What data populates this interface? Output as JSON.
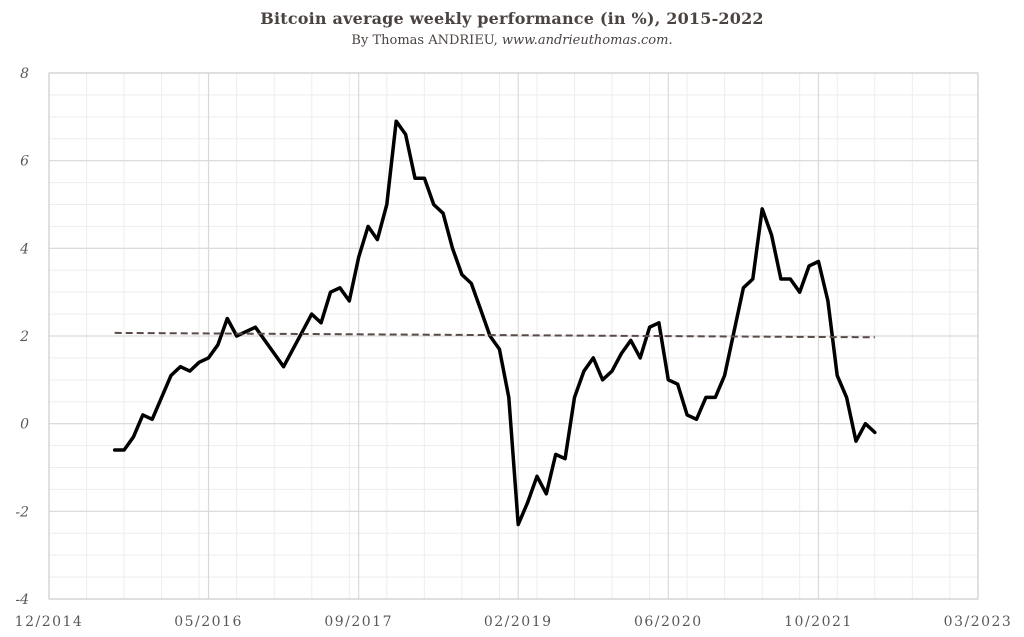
{
  "header": {
    "title": "Bitcoin average weekly performance (in %), 2015-2022",
    "byline": "By Thomas ANDRIEU,",
    "url": "www.andrieuthomas.com."
  },
  "chart_data": {
    "type": "line",
    "title": "Bitcoin average weekly performance (in %), 2015-2022",
    "subtitle": "By Thomas ANDRIEU, www.andrieuthomas.com.",
    "xlabel": "",
    "ylabel": "",
    "ylim": [
      -4,
      8
    ],
    "yticks": [
      "8",
      "6",
      "4",
      "2",
      "0",
      "-2",
      "-4"
    ],
    "xlim": [
      "2014-12",
      "2023-03"
    ],
    "xticks": [
      "12/2014",
      "05/2016",
      "09/2017",
      "02/2019",
      "06/2020",
      "10/2021",
      "03/2023"
    ],
    "grid": true,
    "legend": "none",
    "colors": {
      "line": "#000000",
      "average": "#5a4a48",
      "grid": "#d9d9d9"
    },
    "series": [
      {
        "style": "solid",
        "points": [
          [
            "2015-07",
            -0.6
          ],
          [
            "2015-08",
            -0.6
          ],
          [
            "2015-09",
            -0.3
          ],
          [
            "2015-10",
            0.2
          ],
          [
            "2015-11",
            0.1
          ],
          [
            "2015-12",
            0.6
          ],
          [
            "2016-01",
            1.1
          ],
          [
            "2016-02",
            1.3
          ],
          [
            "2016-03",
            1.2
          ],
          [
            "2016-04",
            1.4
          ],
          [
            "2016-05",
            1.5
          ],
          [
            "2016-06",
            1.8
          ],
          [
            "2016-07",
            2.4
          ],
          [
            "2016-08",
            2.0
          ],
          [
            "2016-09",
            2.1
          ],
          [
            "2016-10",
            2.2
          ],
          [
            "2016-11",
            1.9
          ],
          [
            "2016-12",
            1.6
          ],
          [
            "2017-01",
            1.3
          ],
          [
            "2017-02",
            1.7
          ],
          [
            "2017-03",
            2.1
          ],
          [
            "2017-04",
            2.5
          ],
          [
            "2017-05",
            2.3
          ],
          [
            "2017-06",
            3.0
          ],
          [
            "2017-07",
            3.1
          ],
          [
            "2017-08",
            2.8
          ],
          [
            "2017-09",
            3.8
          ],
          [
            "2017-10",
            4.5
          ],
          [
            "2017-11",
            4.2
          ],
          [
            "2017-12",
            5.0
          ],
          [
            "2018-01",
            6.9
          ],
          [
            "2018-02",
            6.6
          ],
          [
            "2018-03",
            5.6
          ],
          [
            "2018-04",
            5.6
          ],
          [
            "2018-05",
            5.0
          ],
          [
            "2018-06",
            4.8
          ],
          [
            "2018-07",
            4.0
          ],
          [
            "2018-08",
            3.4
          ],
          [
            "2018-09",
            3.2
          ],
          [
            "2018-10",
            2.6
          ],
          [
            "2018-11",
            2.0
          ],
          [
            "2018-12",
            1.7
          ],
          [
            "2019-01",
            0.6
          ],
          [
            "2019-02",
            -2.3
          ],
          [
            "2019-03",
            -1.8
          ],
          [
            "2019-04",
            -1.2
          ],
          [
            "2019-05",
            -1.6
          ],
          [
            "2019-06",
            -0.7
          ],
          [
            "2019-07",
            -0.8
          ],
          [
            "2019-08",
            0.6
          ],
          [
            "2019-09",
            1.2
          ],
          [
            "2019-10",
            1.5
          ],
          [
            "2019-11",
            1.0
          ],
          [
            "2019-12",
            1.2
          ],
          [
            "2020-01",
            1.6
          ],
          [
            "2020-02",
            1.9
          ],
          [
            "2020-03",
            1.5
          ],
          [
            "2020-04",
            2.2
          ],
          [
            "2020-05",
            2.3
          ],
          [
            "2020-06",
            1.0
          ],
          [
            "2020-07",
            0.9
          ],
          [
            "2020-08",
            0.2
          ],
          [
            "2020-09",
            0.1
          ],
          [
            "2020-10",
            0.6
          ],
          [
            "2020-11",
            0.6
          ],
          [
            "2020-12",
            1.1
          ],
          [
            "2021-01",
            2.1
          ],
          [
            "2021-02",
            3.1
          ],
          [
            "2021-03",
            3.3
          ],
          [
            "2021-04",
            4.9
          ],
          [
            "2021-05",
            4.3
          ],
          [
            "2021-06",
            3.3
          ],
          [
            "2021-07",
            3.3
          ],
          [
            "2021-08",
            3.0
          ],
          [
            "2021-09",
            3.6
          ],
          [
            "2021-10",
            3.7
          ],
          [
            "2021-11",
            2.8
          ],
          [
            "2021-12",
            1.1
          ],
          [
            "2022-01",
            0.6
          ],
          [
            "2022-02",
            -0.4
          ],
          [
            "2022-03",
            0.0
          ],
          [
            "2022-04",
            -0.2
          ]
        ]
      },
      {
        "style": "dashed",
        "points": [
          [
            "2015-07",
            2.07
          ],
          [
            "2022-04",
            1.97
          ]
        ]
      }
    ]
  }
}
